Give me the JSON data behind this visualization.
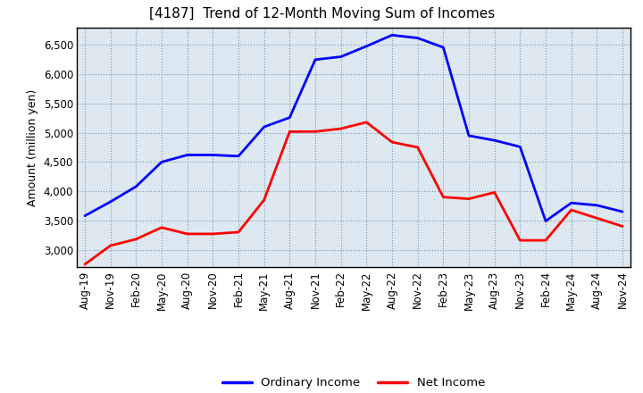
{
  "title": "[4187]  Trend of 12-Month Moving Sum of Incomes",
  "ylabel": "Amount (million yen)",
  "x_labels": [
    "Aug-19",
    "Nov-19",
    "Feb-20",
    "May-20",
    "Aug-20",
    "Nov-20",
    "Feb-21",
    "May-21",
    "Aug-21",
    "Nov-21",
    "Feb-22",
    "May-22",
    "Aug-22",
    "Nov-22",
    "Feb-23",
    "May-23",
    "Aug-23",
    "Nov-23",
    "Feb-24",
    "May-24",
    "Aug-24",
    "Nov-24"
  ],
  "ordinary_income": [
    3580,
    3820,
    4080,
    4500,
    4620,
    4620,
    4600,
    5100,
    5260,
    6250,
    6300,
    6480,
    6670,
    6620,
    6460,
    4950,
    4870,
    4760,
    3490,
    3800,
    3760,
    3650
  ],
  "net_income": [
    2750,
    3070,
    3180,
    3380,
    3270,
    3270,
    3300,
    3850,
    5020,
    5020,
    5070,
    5180,
    4840,
    4750,
    3900,
    3870,
    3980,
    3160,
    3160,
    3680,
    3540,
    3400
  ],
  "ordinary_color": "#0000ff",
  "net_color": "#ff0000",
  "ylim_min": 2700,
  "ylim_max": 6800,
  "yticks": [
    3000,
    3500,
    4000,
    4500,
    5000,
    5500,
    6000,
    6500
  ],
  "plot_bg_color": "#dde8f0",
  "fig_bg_color": "#ffffff",
  "grid_color": "#ffffff",
  "grid_dot_color": "#7a9ab5",
  "line_width": 2.0,
  "title_fontsize": 11,
  "axis_fontsize": 8.5,
  "ylabel_fontsize": 9
}
